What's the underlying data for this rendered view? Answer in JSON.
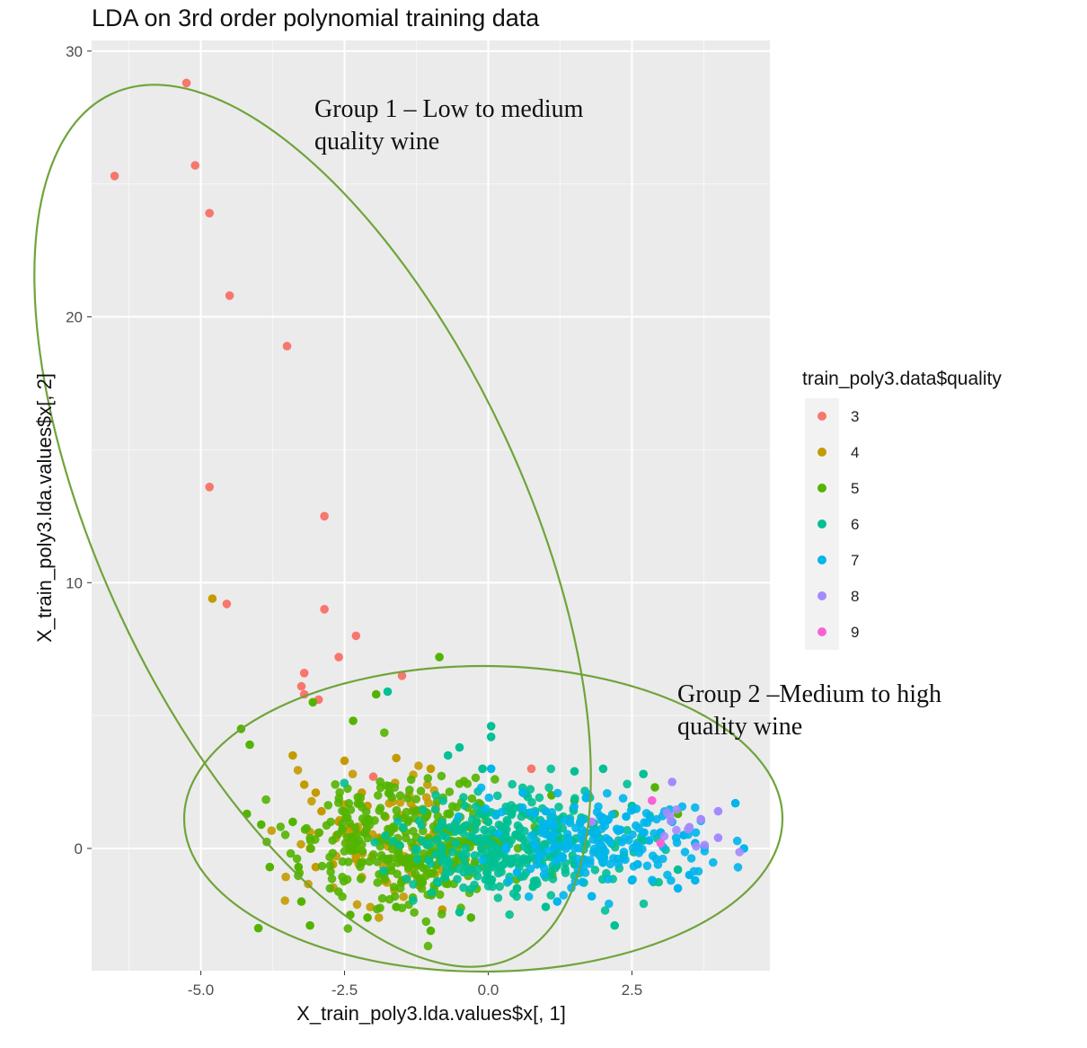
{
  "chart_data": {
    "type": "scatter",
    "title": "LDA on 3rd order polynomial training data",
    "xlabel": "X_train_poly3.lda.values$x[, 1]",
    "ylabel": "X_train_poly3.lda.values$x[, 2]",
    "xlim": [
      -6.9,
      4.9
    ],
    "ylim": [
      -4.6,
      30.4
    ],
    "x_ticks": [
      -5.0,
      -2.5,
      0.0,
      2.5
    ],
    "x_tick_labels": [
      "-5.0",
      "-2.5",
      "0.0",
      "2.5"
    ],
    "y_ticks": [
      0,
      10,
      20,
      30
    ],
    "y_tick_labels": [
      "0",
      "10",
      "20",
      "30"
    ],
    "grid": true,
    "legend": {
      "title": "train_poly3.data$quality",
      "placement": "right",
      "entries": [
        {
          "label": "3",
          "color": "#F8766D"
        },
        {
          "label": "4",
          "color": "#C49A00"
        },
        {
          "label": "5",
          "color": "#53B400"
        },
        {
          "label": "6",
          "color": "#00C094"
        },
        {
          "label": "7",
          "color": "#00B6EB"
        },
        {
          "label": "8",
          "color": "#A58AFF"
        },
        {
          "label": "9",
          "color": "#FB61D7"
        }
      ]
    },
    "series": [
      {
        "name": "3",
        "color": "#F8766D",
        "points": [
          [
            -5.25,
            28.8
          ],
          [
            -6.5,
            25.3
          ],
          [
            -5.1,
            25.7
          ],
          [
            -4.85,
            23.9
          ],
          [
            -4.5,
            20.8
          ],
          [
            -3.5,
            18.9
          ],
          [
            -4.85,
            13.6
          ],
          [
            -2.85,
            12.5
          ],
          [
            -4.55,
            9.2
          ],
          [
            -2.85,
            9.0
          ],
          [
            -2.3,
            8.0
          ],
          [
            -2.6,
            7.2
          ],
          [
            -1.5,
            6.5
          ],
          [
            -3.2,
            6.6
          ],
          [
            -3.25,
            6.1
          ],
          [
            -3.2,
            5.8
          ],
          [
            -2.95,
            5.6
          ],
          [
            0.75,
            3.0
          ],
          [
            -2.0,
            2.7
          ]
        ]
      },
      {
        "name": "4",
        "color": "#C49A00",
        "points": [
          [
            -4.8,
            9.4
          ],
          [
            -3.4,
            3.5
          ],
          [
            -2.5,
            3.3
          ],
          [
            -1.6,
            3.4
          ],
          [
            -3.2,
            2.4
          ],
          [
            -1.0,
            3.0
          ],
          [
            -2.2,
            2.1
          ],
          [
            -3.0,
            2.1
          ],
          [
            -1.3,
            1.5
          ],
          [
            -2.6,
            1.0
          ],
          [
            -1.9,
            0.4
          ],
          [
            -3.1,
            0.0
          ],
          [
            -2.3,
            -0.4
          ],
          [
            -1.6,
            0.2
          ],
          [
            -0.9,
            0.6
          ],
          [
            -2.7,
            -0.6
          ],
          [
            -1.8,
            -0.9
          ],
          [
            -3.0,
            -0.7
          ],
          [
            -1.2,
            -1.4
          ],
          [
            -0.8,
            -2.3
          ],
          [
            1.1,
            0.3
          ],
          [
            -2.1,
            1.6
          ],
          [
            -2.9,
            1.4
          ],
          [
            -1.5,
            -0.5
          ],
          [
            -2.4,
            0.8
          ]
        ]
      },
      {
        "name": "5",
        "color": "#53B400",
        "points": [
          [
            -0.85,
            7.2
          ],
          [
            -1.95,
            5.8
          ],
          [
            -2.35,
            4.8
          ],
          [
            -3.05,
            5.5
          ],
          [
            -4.3,
            4.5
          ],
          [
            -4.15,
            3.9
          ],
          [
            -4.2,
            1.3
          ],
          [
            -3.95,
            0.9
          ],
          [
            -3.4,
            1.0
          ],
          [
            -3.3,
            -0.7
          ],
          [
            -3.8,
            -0.7
          ],
          [
            -3.25,
            -2.0
          ],
          [
            -4.0,
            -3.0
          ],
          [
            -3.1,
            -2.9
          ],
          [
            -2.4,
            -2.5
          ],
          [
            -2.1,
            -2.6
          ],
          [
            -1.6,
            -2.2
          ],
          [
            -1.0,
            -3.1
          ],
          [
            -0.3,
            -2.6
          ],
          [
            0.9,
            0.7
          ],
          [
            1.5,
            1.8
          ],
          [
            2.2,
            1.3
          ],
          [
            3.3,
            1.3
          ],
          [
            1.1,
            2.0
          ],
          [
            2.9,
            2.3
          ]
        ]
      },
      {
        "name": "6",
        "color": "#00C094",
        "points": [
          [
            -1.75,
            5.9
          ],
          [
            0.05,
            4.6
          ],
          [
            -0.5,
            3.8
          ],
          [
            0.05,
            4.2
          ],
          [
            -0.1,
            3.0
          ],
          [
            -0.7,
            3.5
          ],
          [
            1.5,
            2.9
          ],
          [
            2.0,
            3.0
          ],
          [
            2.7,
            2.8
          ],
          [
            0.6,
            1.4
          ],
          [
            0.0,
            1.0
          ],
          [
            -0.5,
            0.7
          ],
          [
            0.9,
            0.0
          ],
          [
            1.5,
            -0.6
          ],
          [
            2.0,
            -0.5
          ],
          [
            2.7,
            0.3
          ],
          [
            3.3,
            -0.8
          ],
          [
            2.2,
            -2.9
          ],
          [
            1.0,
            -2.2
          ],
          [
            -0.5,
            -2.4
          ],
          [
            0.5,
            -1.5
          ],
          [
            1.8,
            0.9
          ],
          [
            2.5,
            1.6
          ],
          [
            -0.3,
            -0.8
          ],
          [
            0.3,
            0.5
          ]
        ]
      },
      {
        "name": "7",
        "color": "#00B6EB",
        "points": [
          [
            0.05,
            3.0
          ],
          [
            0.6,
            2.1
          ],
          [
            1.0,
            1.4
          ],
          [
            1.6,
            1.0
          ],
          [
            2.3,
            0.7
          ],
          [
            2.8,
            0.3
          ],
          [
            3.2,
            1.0
          ],
          [
            3.6,
            0.2
          ],
          [
            4.3,
            1.7
          ],
          [
            4.45,
            0.0
          ],
          [
            3.6,
            -1.2
          ],
          [
            3.5,
            -1.0
          ],
          [
            3.3,
            -1.5
          ],
          [
            2.5,
            -1.2
          ],
          [
            1.8,
            -1.8
          ],
          [
            1.2,
            -2.0
          ],
          [
            0.5,
            -0.9
          ],
          [
            1.4,
            0.3
          ],
          [
            2.0,
            0.0
          ],
          [
            2.6,
            -0.6
          ],
          [
            3.0,
            0.6
          ],
          [
            1.7,
            1.9
          ],
          [
            2.4,
            1.2
          ],
          [
            3.4,
            0.5
          ],
          [
            0.8,
            0.2
          ]
        ]
      },
      {
        "name": "8",
        "color": "#A58AFF",
        "points": [
          [
            4.0,
            0.4
          ],
          [
            4.0,
            1.4
          ],
          [
            3.7,
            1.1
          ],
          [
            3.2,
            2.5
          ],
          [
            1.8,
            1.0
          ],
          [
            3.5,
            0.8
          ]
        ]
      },
      {
        "name": "9",
        "color": "#FB61D7",
        "points": [
          [
            2.85,
            1.8
          ],
          [
            3.0,
            0.2
          ]
        ]
      }
    ],
    "annotations": [
      {
        "lines": [
          "Group 1 – Low to medium",
          "quality wine"
        ]
      },
      {
        "lines": [
          "Group 2 –Medium to high",
          "quality wine"
        ]
      }
    ]
  }
}
